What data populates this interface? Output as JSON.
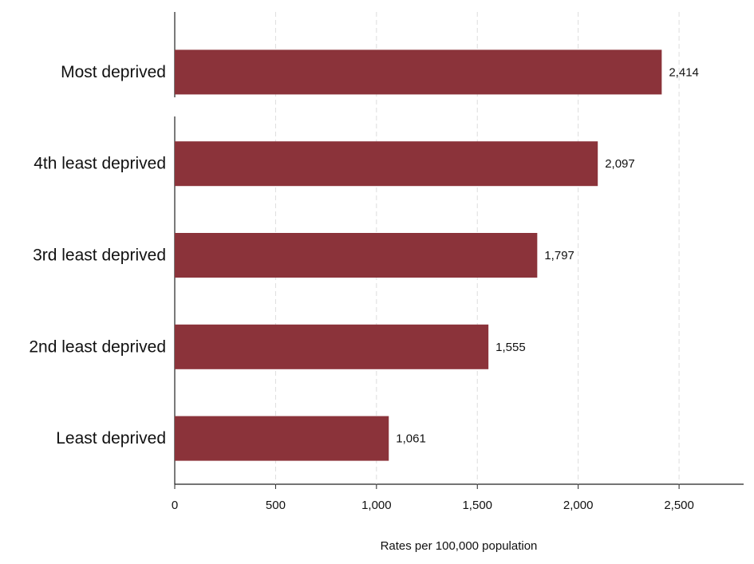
{
  "chart_data": {
    "type": "bar",
    "orientation": "horizontal",
    "categories": [
      "Most deprived",
      "4th least deprived",
      "3rd least deprived",
      "2nd least deprived",
      "Least deprived"
    ],
    "values": [
      2414,
      2097,
      1797,
      1555,
      1061
    ],
    "value_labels": [
      "2,414",
      "2,097",
      "1,797",
      "1,555",
      "1,061"
    ],
    "color": "#8b333a",
    "xlabel": "Rates per 100,000 population",
    "xlim": [
      0,
      2820
    ],
    "xticks": [
      0,
      500,
      {
        "value": 1000,
        "label": "1,000"
      },
      {
        "value": 1500,
        "label": "1,500"
      },
      {
        "value": 2000,
        "label": "2,000"
      },
      {
        "value": 2500,
        "label": "2,500"
      }
    ],
    "grid": true
  }
}
